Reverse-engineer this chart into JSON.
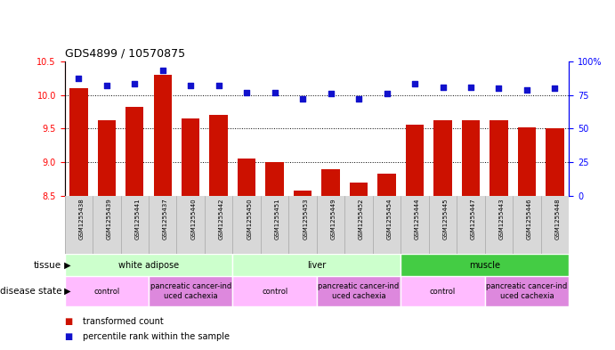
{
  "title": "GDS4899 / 10570875",
  "samples": [
    "GSM1255438",
    "GSM1255439",
    "GSM1255441",
    "GSM1255437",
    "GSM1255440",
    "GSM1255442",
    "GSM1255450",
    "GSM1255451",
    "GSM1255453",
    "GSM1255449",
    "GSM1255452",
    "GSM1255454",
    "GSM1255444",
    "GSM1255445",
    "GSM1255447",
    "GSM1255443",
    "GSM1255446",
    "GSM1255448"
  ],
  "bar_values": [
    10.1,
    9.62,
    9.82,
    10.3,
    9.65,
    9.7,
    9.05,
    9.0,
    8.58,
    8.9,
    8.7,
    8.83,
    9.56,
    9.62,
    9.62,
    9.62,
    9.52,
    9.5
  ],
  "blue_values": [
    87,
    82,
    83,
    93,
    82,
    82,
    77,
    77,
    72,
    76,
    72,
    76,
    83,
    81,
    81,
    80,
    79,
    80
  ],
  "ylim_left": [
    8.5,
    10.5
  ],
  "ylim_right": [
    0,
    100
  ],
  "yticks_left": [
    8.5,
    9.0,
    9.5,
    10.0,
    10.5
  ],
  "yticks_right": [
    0,
    25,
    50,
    75,
    100
  ],
  "bar_color": "#cc1100",
  "blue_color": "#1111cc",
  "tissue_groups": [
    {
      "label": "white adipose",
      "start": 0,
      "end": 5,
      "color": "#ccffcc"
    },
    {
      "label": "liver",
      "start": 6,
      "end": 11,
      "color": "#ccffcc"
    },
    {
      "label": "muscle",
      "start": 12,
      "end": 17,
      "color": "#44cc44"
    }
  ],
  "disease_groups": [
    {
      "label": "control",
      "start": 0,
      "end": 2,
      "color": "#ffbbff"
    },
    {
      "label": "pancreatic cancer-ind\nuced cachexia",
      "start": 3,
      "end": 5,
      "color": "#dd88dd"
    },
    {
      "label": "control",
      "start": 6,
      "end": 8,
      "color": "#ffbbff"
    },
    {
      "label": "pancreatic cancer-ind\nuced cachexia",
      "start": 9,
      "end": 11,
      "color": "#dd88dd"
    },
    {
      "label": "control",
      "start": 12,
      "end": 14,
      "color": "#ffbbff"
    },
    {
      "label": "pancreatic cancer-ind\nuced cachexia",
      "start": 15,
      "end": 17,
      "color": "#dd88dd"
    }
  ],
  "grid_dotted_at": [
    9.0,
    9.5,
    10.0
  ],
  "label_area_bg": "#d8d8d8",
  "title_fontsize": 9,
  "tick_fontsize": 7,
  "sample_fontsize": 5.0,
  "tissue_fontsize": 7,
  "disease_fontsize": 6,
  "legend_fontsize": 7
}
